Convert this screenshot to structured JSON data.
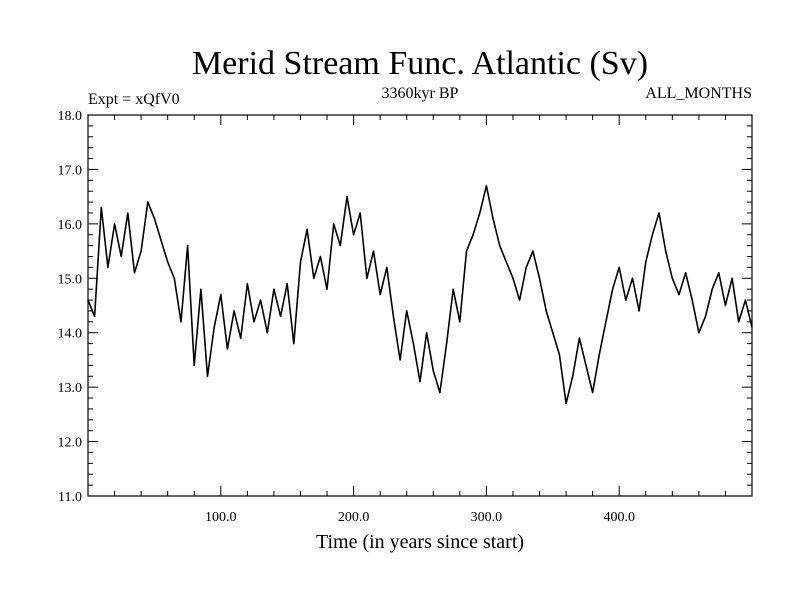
{
  "chart_data": {
    "type": "line",
    "title": "Merid Stream Func. Atlantic (Sv)",
    "subtitle_left": "Expt = xQfV0",
    "subtitle_center": "3360kyr BP",
    "subtitle_right": "ALL_MONTHS",
    "xlabel": "Time (in years since start)",
    "ylabel": "",
    "xlim": [
      0,
      500
    ],
    "ylim": [
      11.0,
      18.0
    ],
    "x_ticks": [
      100,
      200,
      300,
      400
    ],
    "x_tick_labels": [
      "100.0",
      "200.0",
      "300.0",
      "400.0"
    ],
    "y_ticks": [
      11,
      12,
      13,
      14,
      15,
      16,
      17,
      18
    ],
    "y_tick_labels": [
      "11.0",
      "12.0",
      "13.0",
      "14.0",
      "15.0",
      "16.0",
      "17.0",
      "18.0"
    ],
    "series": [
      {
        "name": "Merid Stream Func. Atlantic",
        "color": "#000000",
        "x": [
          0,
          5,
          10,
          15,
          20,
          25,
          30,
          35,
          40,
          45,
          50,
          55,
          60,
          65,
          70,
          75,
          80,
          85,
          90,
          95,
          100,
          105,
          110,
          115,
          120,
          125,
          130,
          135,
          140,
          145,
          150,
          155,
          160,
          165,
          170,
          175,
          180,
          185,
          190,
          195,
          200,
          205,
          210,
          215,
          220,
          225,
          230,
          235,
          240,
          245,
          250,
          255,
          260,
          265,
          270,
          275,
          280,
          285,
          290,
          295,
          300,
          305,
          310,
          315,
          320,
          325,
          330,
          335,
          340,
          345,
          350,
          355,
          360,
          365,
          370,
          375,
          380,
          385,
          390,
          395,
          400,
          405,
          410,
          415,
          420,
          425,
          430,
          435,
          440,
          445,
          450,
          455,
          460,
          465,
          470,
          475,
          480,
          485,
          490,
          495,
          500
        ],
        "values": [
          14.6,
          14.3,
          16.3,
          15.2,
          16.0,
          15.4,
          16.2,
          15.1,
          15.5,
          16.4,
          16.1,
          15.7,
          15.3,
          15.0,
          14.2,
          15.6,
          13.4,
          14.8,
          13.2,
          14.1,
          14.7,
          13.7,
          14.4,
          13.9,
          14.9,
          14.2,
          14.6,
          14.0,
          14.8,
          14.3,
          14.9,
          13.8,
          15.3,
          15.9,
          15.0,
          15.4,
          14.8,
          16.0,
          15.6,
          16.5,
          15.8,
          16.2,
          15.0,
          15.5,
          14.7,
          15.2,
          14.3,
          13.5,
          14.4,
          13.8,
          13.1,
          14.0,
          13.3,
          12.9,
          13.8,
          14.8,
          14.2,
          15.5,
          15.8,
          16.2,
          16.7,
          16.1,
          15.6,
          15.3,
          15.0,
          14.6,
          15.2,
          15.5,
          15.0,
          14.4,
          14.0,
          13.6,
          12.7,
          13.2,
          13.9,
          13.4,
          12.9,
          13.6,
          14.2,
          14.8,
          15.2,
          14.6,
          15.0,
          14.4,
          15.3,
          15.8,
          16.2,
          15.5,
          15.0,
          14.7,
          15.1,
          14.6,
          14.0,
          14.3,
          14.8,
          15.1,
          14.5,
          15.0,
          14.2,
          14.6,
          14.1
        ]
      }
    ]
  }
}
